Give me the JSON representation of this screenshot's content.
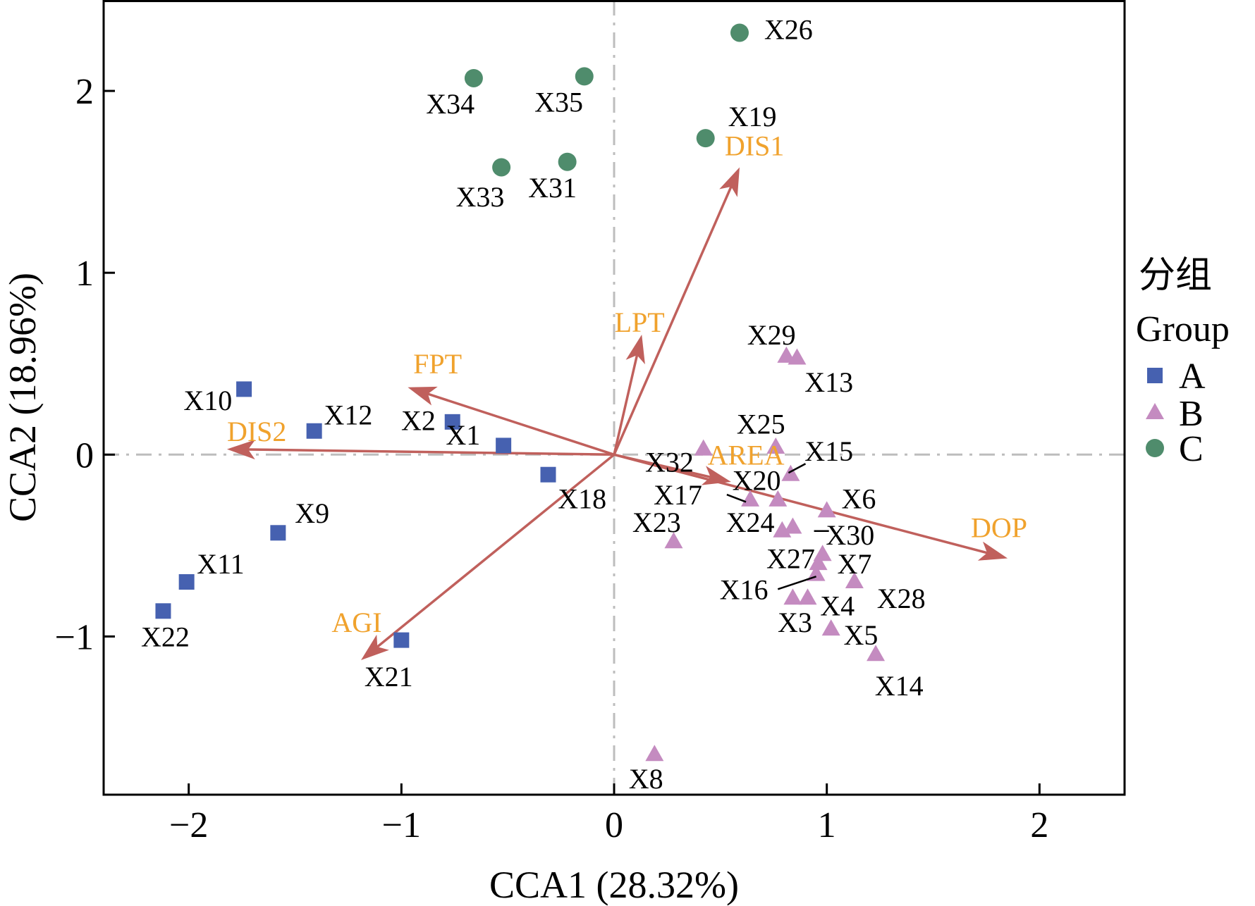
{
  "chart_data": {
    "type": "scatter",
    "xlabel": "CCA1 (28.32%)",
    "ylabel": "CCA2 (18.96%)",
    "xlim": [
      -2.4,
      2.4
    ],
    "ylim": [
      -1.87,
      2.5
    ],
    "x_ticks": [
      -2,
      -1,
      0,
      1,
      2
    ],
    "y_ticks": [
      -1,
      0,
      1,
      2
    ],
    "x_tick_labels": [
      "−2",
      "−1",
      "0",
      "1",
      "2"
    ],
    "y_tick_labels": [
      "−1",
      "0",
      "1",
      "2"
    ],
    "reference_lines": {
      "x": 0,
      "y": 0,
      "style": "dash-dot",
      "color": "#bdbdbd"
    },
    "legend": {
      "title_lines": [
        "分组",
        "Group"
      ],
      "placement": "right",
      "entries": [
        {
          "group": "A",
          "label": "A",
          "marker": "square",
          "color": "#4661b0"
        },
        {
          "group": "B",
          "label": "B",
          "marker": "triangle",
          "color": "#c48bc0"
        },
        {
          "group": "C",
          "label": "C",
          "marker": "circle",
          "color": "#4f8c6c"
        }
      ]
    },
    "arrow_color": "#c0605c",
    "var_label_color": "#f0a22d",
    "vectors": [
      {
        "name": "DIS1",
        "x": 0.59,
        "y": 1.58
      },
      {
        "name": "LPT",
        "x": 0.13,
        "y": 0.66
      },
      {
        "name": "FPT",
        "x": -0.97,
        "y": 0.37
      },
      {
        "name": "DIS2",
        "x": -1.82,
        "y": 0.03
      },
      {
        "name": "AGI",
        "x": -1.19,
        "y": -1.13
      },
      {
        "name": "AREA",
        "x": 0.55,
        "y": -0.15
      },
      {
        "name": "DOP",
        "x": 1.85,
        "y": -0.57
      }
    ],
    "vector_labels": [
      {
        "name": "DIS1",
        "x": 0.66,
        "y": 1.7
      },
      {
        "name": "LPT",
        "x": 0.12,
        "y": 0.73
      },
      {
        "name": "FPT",
        "x": -0.83,
        "y": 0.5
      },
      {
        "name": "DIS2",
        "x": -1.68,
        "y": 0.13
      },
      {
        "name": "AGI",
        "x": -1.21,
        "y": -0.92
      },
      {
        "name": "AREA",
        "x": 0.62,
        "y": 0.0
      },
      {
        "name": "DOP",
        "x": 1.81,
        "y": -0.4
      }
    ],
    "points": [
      {
        "label": "X1",
        "group": "A",
        "x": -0.52,
        "y": 0.05,
        "lx": -0.71,
        "ly": 0.11
      },
      {
        "label": "X2",
        "group": "A",
        "x": -0.76,
        "y": 0.18,
        "lx": -0.92,
        "ly": 0.19
      },
      {
        "label": "X9",
        "group": "A",
        "x": -1.58,
        "y": -0.43,
        "lx": -1.42,
        "ly": -0.32
      },
      {
        "label": "X10",
        "group": "A",
        "x": -1.74,
        "y": 0.36,
        "lx": -1.91,
        "ly": 0.3
      },
      {
        "label": "X11",
        "group": "A",
        "x": -2.01,
        "y": -0.7,
        "lx": -1.85,
        "ly": -0.6
      },
      {
        "label": "X12",
        "group": "A",
        "x": -1.41,
        "y": 0.13,
        "lx": -1.25,
        "ly": 0.22
      },
      {
        "label": "X18",
        "group": "A",
        "x": -0.31,
        "y": -0.11,
        "lx": -0.15,
        "ly": -0.24
      },
      {
        "label": "X21",
        "group": "A",
        "x": -1.0,
        "y": -1.02,
        "lx": -1.06,
        "ly": -1.22
      },
      {
        "label": "X22",
        "group": "A",
        "x": -2.12,
        "y": -0.86,
        "lx": -2.11,
        "ly": -1.0
      },
      {
        "label": "X3",
        "group": "B",
        "x": 0.84,
        "y": -0.79,
        "lx": 0.85,
        "ly": -0.92
      },
      {
        "label": "X4",
        "group": "B",
        "x": 0.91,
        "y": -0.79,
        "lx": 1.05,
        "ly": -0.83
      },
      {
        "label": "X5",
        "group": "B",
        "x": 1.02,
        "y": -0.96,
        "lx": 1.16,
        "ly": -0.99
      },
      {
        "label": "X6",
        "group": "B",
        "x": 1.0,
        "y": -0.31,
        "lx": 1.15,
        "ly": -0.24
      },
      {
        "label": "X7",
        "group": "B",
        "x": 0.98,
        "y": -0.55,
        "lx": 1.13,
        "ly": -0.6
      },
      {
        "label": "X8",
        "group": "B",
        "x": 0.19,
        "y": -1.65,
        "lx": 0.15,
        "ly": -1.78
      },
      {
        "label": "X13",
        "group": "B",
        "x": 0.86,
        "y": 0.53,
        "lx": 1.01,
        "ly": 0.4
      },
      {
        "label": "X14",
        "group": "B",
        "x": 1.23,
        "y": -1.1,
        "lx": 1.34,
        "ly": -1.27
      },
      {
        "label": "X15",
        "group": "B",
        "x": 0.83,
        "y": -0.11,
        "lx": 1.01,
        "ly": 0.02
      },
      {
        "label": "X16",
        "group": "B",
        "x": 0.95,
        "y": -0.66,
        "lx": 0.61,
        "ly": -0.74
      },
      {
        "label": "X17",
        "group": "B",
        "x": 0.64,
        "y": -0.25,
        "lx": 0.3,
        "ly": -0.22
      },
      {
        "label": "X20",
        "group": "B",
        "x": 0.77,
        "y": -0.25,
        "lx": 0.67,
        "ly": -0.14
      },
      {
        "label": "X23",
        "group": "B",
        "x": 0.28,
        "y": -0.48,
        "lx": 0.2,
        "ly": -0.37
      },
      {
        "label": "X24",
        "group": "B",
        "x": 0.79,
        "y": -0.42,
        "lx": 0.64,
        "ly": -0.37
      },
      {
        "label": "X25",
        "group": "B",
        "x": 0.76,
        "y": 0.04,
        "lx": 0.69,
        "ly": 0.17
      },
      {
        "label": "X27",
        "group": "B",
        "x": 0.96,
        "y": -0.6,
        "lx": 0.83,
        "ly": -0.57
      },
      {
        "label": "X28",
        "group": "B",
        "x": 1.13,
        "y": -0.7,
        "lx": 1.35,
        "ly": -0.79
      },
      {
        "label": "X29",
        "group": "B",
        "x": 0.81,
        "y": 0.54,
        "lx": 0.74,
        "ly": 0.66
      },
      {
        "label": "X30",
        "group": "B",
        "x": 0.84,
        "y": -0.4,
        "lx": 1.11,
        "ly": -0.44
      },
      {
        "label": "X32",
        "group": "B",
        "x": 0.42,
        "y": 0.03,
        "lx": 0.26,
        "ly": -0.04
      },
      {
        "label": "X19",
        "group": "C",
        "x": 0.43,
        "y": 1.74,
        "lx": 0.65,
        "ly": 1.86
      },
      {
        "label": "X26",
        "group": "C",
        "x": 0.59,
        "y": 2.32,
        "lx": 0.82,
        "ly": 2.34
      },
      {
        "label": "X31",
        "group": "C",
        "x": -0.22,
        "y": 1.61,
        "lx": -0.29,
        "ly": 1.47
      },
      {
        "label": "X33",
        "group": "C",
        "x": -0.53,
        "y": 1.58,
        "lx": -0.63,
        "ly": 1.42
      },
      {
        "label": "X34",
        "group": "C",
        "x": -0.66,
        "y": 2.07,
        "lx": -0.77,
        "ly": 1.93
      },
      {
        "label": "X35",
        "group": "C",
        "x": -0.14,
        "y": 2.08,
        "lx": -0.26,
        "ly": 1.94
      }
    ],
    "leader_lines": [
      {
        "x1": 0.82,
        "y1": -0.1,
        "x2": 0.9,
        "y2": -0.05
      },
      {
        "x1": 0.53,
        "y1": -0.22,
        "x2": 0.62,
        "y2": -0.26
      },
      {
        "x1": 0.94,
        "y1": -0.42,
        "x2": 1.01,
        "y2": -0.42
      },
      {
        "x1": 0.77,
        "y1": -0.74,
        "x2": 0.95,
        "y2": -0.67
      }
    ]
  }
}
